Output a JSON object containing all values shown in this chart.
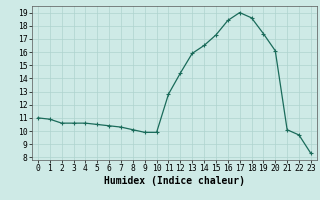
{
  "x": [
    0,
    1,
    2,
    3,
    4,
    5,
    6,
    7,
    8,
    9,
    10,
    11,
    12,
    13,
    14,
    15,
    16,
    17,
    18,
    19,
    20,
    21,
    22,
    23
  ],
  "y": [
    11,
    10.9,
    10.6,
    10.6,
    10.6,
    10.5,
    10.4,
    10.3,
    10.1,
    9.9,
    9.9,
    12.8,
    14.4,
    15.9,
    16.5,
    17.3,
    18.4,
    19.0,
    18.6,
    17.4,
    16.1,
    10.1,
    9.7,
    8.3
  ],
  "xlabel": "Humidex (Indice chaleur)",
  "ylim": [
    7.8,
    19.5
  ],
  "xlim": [
    -0.5,
    23.5
  ],
  "yticks": [
    8,
    9,
    10,
    11,
    12,
    13,
    14,
    15,
    16,
    17,
    18,
    19
  ],
  "xticks": [
    0,
    1,
    2,
    3,
    4,
    5,
    6,
    7,
    8,
    9,
    10,
    11,
    12,
    13,
    14,
    15,
    16,
    17,
    18,
    19,
    20,
    21,
    22,
    23
  ],
  "line_color": "#1a6b5a",
  "marker": "+",
  "bg_color": "#ceeae6",
  "grid_color": "#afd4cf",
  "axis_label_fontsize": 7,
  "tick_fontsize": 5.8
}
